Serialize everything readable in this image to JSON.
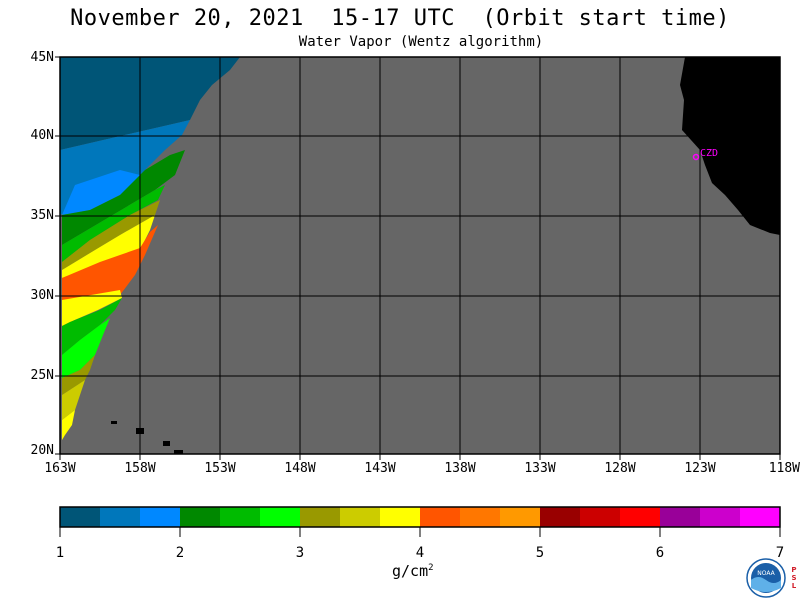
{
  "header": {
    "title": "November 20, 2021  15-17 UTC  (Orbit start time)",
    "subtitle": "Water Vapor (Wentz algorithm)"
  },
  "map": {
    "lat_labels": [
      "45N",
      "40N",
      "35N",
      "30N",
      "25N",
      "20N"
    ],
    "lon_labels": [
      "163W",
      "158W",
      "153W",
      "148W",
      "143W",
      "138W",
      "133W",
      "128W",
      "123W",
      "118W"
    ],
    "lat_range": [
      20,
      45
    ],
    "lon_range": [
      -163,
      -118
    ],
    "station_label": "CZD",
    "no_data_color": "#666666",
    "land_color": "#000000",
    "station_color": "#ff00ff"
  },
  "colorbar": {
    "ticks": [
      "1",
      "2",
      "3",
      "4",
      "5",
      "6",
      "7"
    ],
    "units_label": "g/cm",
    "units_exponent": "2",
    "colors": [
      "#005577",
      "#0077bb",
      "#0088ff",
      "#008800",
      "#00bb00",
      "#00ff00",
      "#999900",
      "#cccc00",
      "#ffff00",
      "#ff5500",
      "#ff7700",
      "#ff9900",
      "#990000",
      "#cc0000",
      "#ff0000",
      "#990099",
      "#cc00cc",
      "#ff00ff"
    ]
  },
  "logo": {
    "name": "NOAA",
    "side_text": "PSL"
  }
}
